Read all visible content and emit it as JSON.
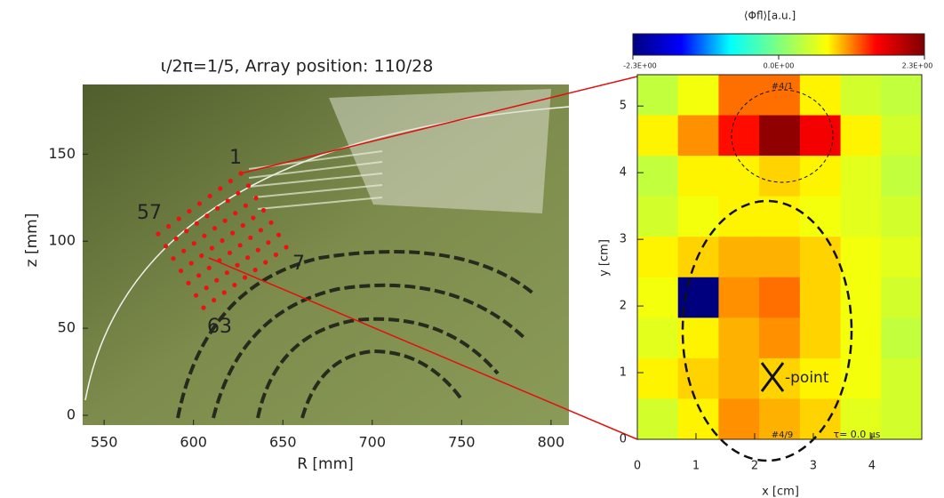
{
  "chart_data": [
    {
      "type": "image",
      "title": "ι/2π=1/5, Array position: 110/28",
      "x_label": "R [mm]",
      "y_label": "z [mm]",
      "xlim": [
        538,
        810
      ],
      "ylim": [
        -5.6,
        190
      ],
      "xticks": [
        550,
        600,
        650,
        700,
        750,
        800
      ],
      "yticks": [
        0,
        50,
        100,
        150
      ],
      "annotations": [
        "1",
        "57",
        "7",
        "63"
      ],
      "marker_color": "#ee1111"
    },
    {
      "type": "heatmap",
      "title": "⟨Φfl⟩[a.u.]",
      "x_label": "x [cm]",
      "y_label": "y [cm]",
      "xlim": [
        0,
        4.85
      ],
      "ylim": [
        0,
        5.47
      ],
      "xticks": [
        0,
        1,
        2,
        3,
        4
      ],
      "yticks": [
        0,
        1,
        2,
        3,
        4,
        5
      ],
      "values": [
        [
          0.4,
          0.7,
          1.2,
          1.2,
          0.8,
          0.5,
          0.4
        ],
        [
          0.8,
          1.1,
          1.5,
          2.2,
          1.6,
          0.8,
          0.5
        ],
        [
          0.4,
          0.8,
          0.8,
          0.9,
          0.8,
          0.6,
          0.4
        ],
        [
          0.5,
          0.7,
          0.8,
          0.8,
          0.7,
          0.6,
          0.5
        ],
        [
          0.8,
          0.9,
          1.0,
          1.0,
          0.9,
          0.7,
          0.6
        ],
        [
          0.7,
          -2.3,
          1.1,
          1.2,
          0.9,
          0.7,
          0.5
        ],
        [
          0.6,
          0.8,
          1.0,
          1.1,
          0.9,
          0.7,
          0.4
        ],
        [
          0.8,
          0.9,
          1.0,
          0.9,
          0.8,
          0.7,
          0.5
        ],
        [
          0.5,
          0.8,
          1.1,
          1.0,
          0.9,
          0.6,
          0.5
        ]
      ],
      "colorbar_lim": [
        -2.3,
        2.3
      ],
      "colorbar_ticks": [
        {
          "value": -2.3,
          "label": "-2.3E+00"
        },
        {
          "value": 0,
          "label": "0.0E+00"
        },
        {
          "value": 2.3,
          "label": "2.3E+00"
        }
      ],
      "colormap": [
        "#00007f",
        "#0000ff",
        "#00ffff",
        "#7fff7f",
        "#ffff00",
        "#ff0000",
        "#7f0000"
      ],
      "annotations": [
        "#4/1",
        "#4/9",
        "τ=  0.0 μs",
        "-point"
      ]
    }
  ]
}
